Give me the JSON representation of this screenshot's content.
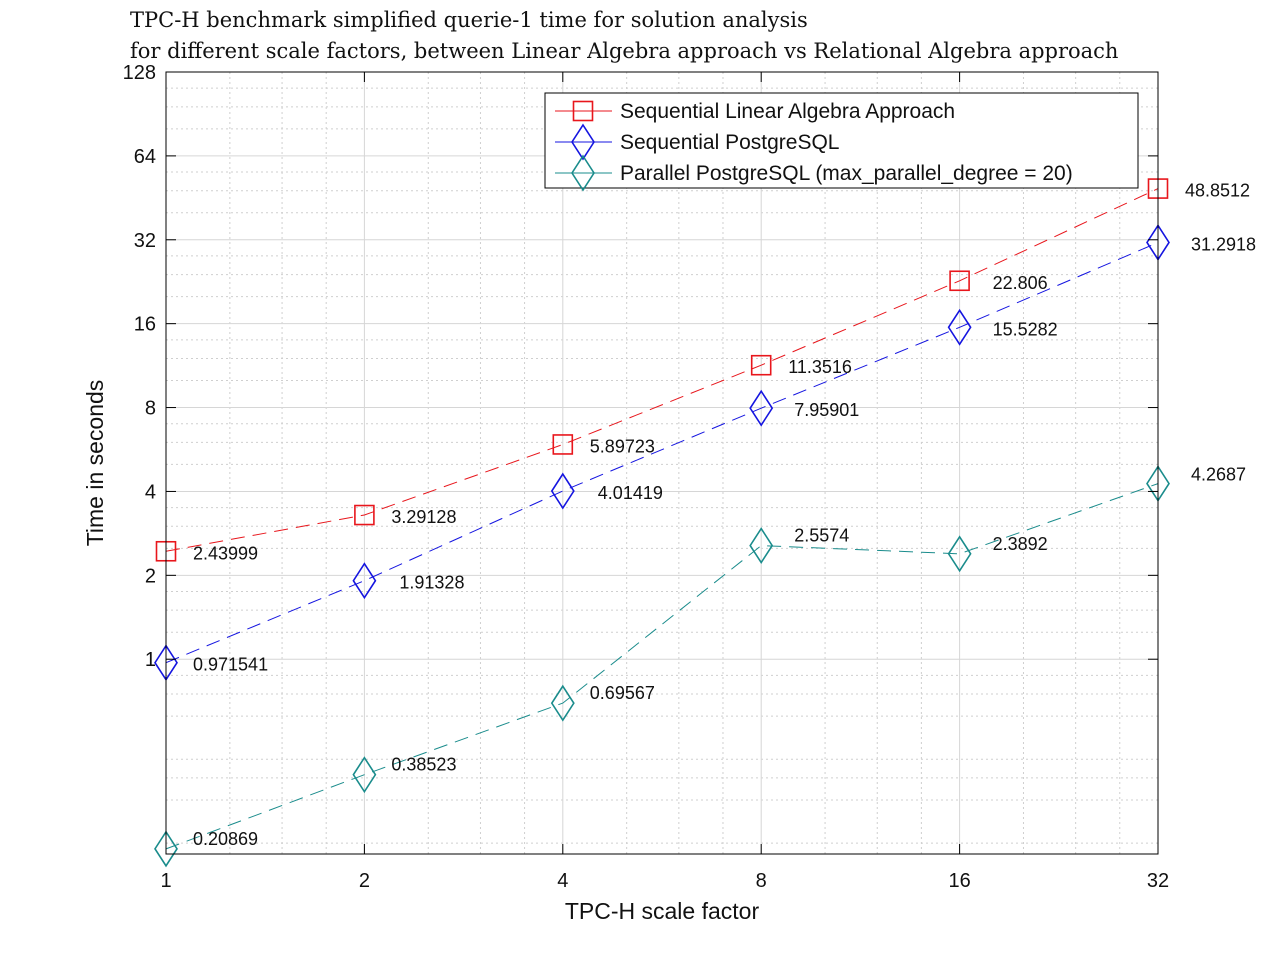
{
  "chart_data": {
    "type": "line",
    "title_lines": [
      "TPC-H benchmark simplified querie-1 time for solution analysis",
      "for different scale factors, between Linear Algebra approach vs Relational Algebra approach"
    ],
    "xlabel": "TPC-H scale factor",
    "ylabel": "Time in seconds",
    "x_scale": "log2",
    "y_scale": "log2",
    "x": [
      1,
      2,
      4,
      8,
      16,
      32
    ],
    "x_tick_labels": [
      "1",
      "2",
      "4",
      "8",
      "16",
      "32"
    ],
    "y_ticks": [
      1,
      2,
      4,
      8,
      16,
      32,
      64,
      128
    ],
    "y_tick_labels": [
      "1",
      "2",
      "4",
      "8",
      "16",
      "32",
      "64",
      "128"
    ],
    "xlim": [
      1,
      32
    ],
    "ylim": [
      0.2,
      128
    ],
    "grid": true,
    "legend_position": "top-right",
    "series": [
      {
        "name": "Sequential Linear Algebra Approach",
        "color": "#e8161c",
        "marker": "square",
        "line_style": "dashed",
        "values": [
          2.43999,
          3.29128,
          5.89723,
          11.3516,
          22.806,
          48.8512
        ],
        "labels": [
          "2.43999",
          "3.29128",
          "5.89723",
          "11.3516",
          "22.806",
          "48.8512"
        ]
      },
      {
        "name": "Sequential PostgreSQL",
        "color": "#1515e0",
        "marker": "diamond",
        "line_style": "dashed",
        "values": [
          0.971541,
          1.91328,
          4.01419,
          7.95901,
          15.5282,
          31.2918
        ],
        "labels": [
          "0.971541",
          "1.91328",
          "4.01419",
          "7.95901",
          "15.5282",
          "31.2918"
        ]
      },
      {
        "name": "Parallel PostgreSQL (max_parallel_degree = 20)",
        "color": "#1a8c8c",
        "marker": "diamond",
        "line_style": "dashed",
        "values": [
          0.20869,
          0.38523,
          0.69567,
          2.5574,
          2.3892,
          4.2687
        ],
        "labels": [
          "0.20869",
          "0.38523",
          "0.69567",
          "2.5574",
          "2.3892",
          "4.2687"
        ]
      }
    ]
  }
}
